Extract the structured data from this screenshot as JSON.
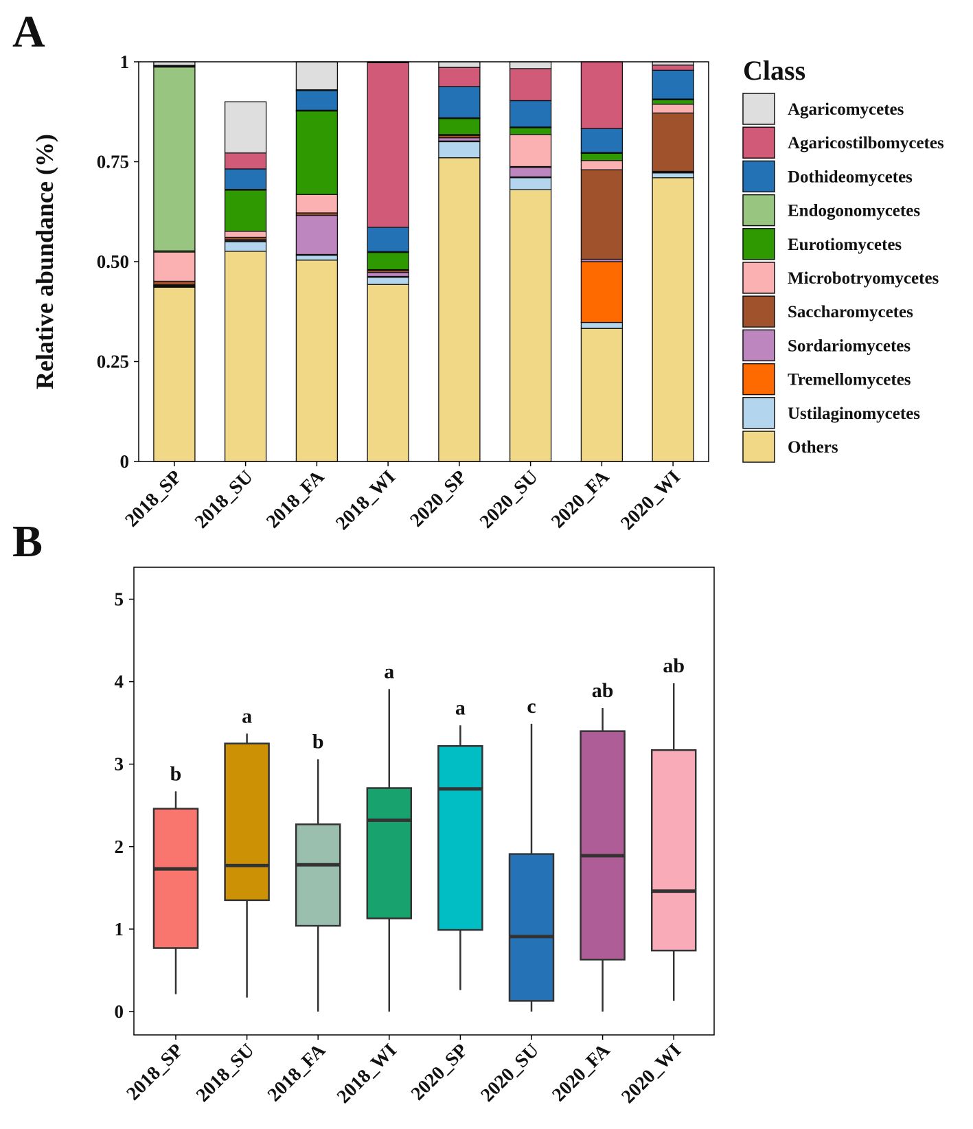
{
  "chart_data": [
    {
      "panel": "A",
      "type": "bar",
      "stacked": true,
      "ylabel": "Relative abundance (%)",
      "ylim": [
        0,
        1
      ],
      "yticks": [
        0,
        0.25,
        0.5,
        0.75,
        1
      ],
      "ytick_labels": [
        "0",
        "0.25",
        "0.50",
        "0.75",
        "1"
      ],
      "categories": [
        "2018_SP",
        "2018_SU",
        "2018_FA",
        "2018_WI",
        "2020_SP",
        "2020_SU",
        "2020_FA",
        "2020_WI"
      ],
      "legend_title": "Class",
      "legend_position": "right",
      "legend": [
        "Agaricomycetes",
        "Agaricostilbomycetes",
        "Dothideomycetes",
        "Endogonomycetes",
        "Eurotiomycetes",
        "Microbotryomycetes",
        "Saccharomycetes",
        "Sordariomycetes",
        "Tremellomycetes",
        "Ustilaginomycetes",
        "Others"
      ],
      "stack_order_bottom_up": [
        "Others",
        "Ustilaginomycetes",
        "Tremellomycetes",
        "Sordariomycetes",
        "Saccharomycetes",
        "Microbotryomycetes",
        "Eurotiomycetes",
        "Endogonomycetes",
        "Dothideomycetes",
        "Agaricostilbomycetes",
        "Agaricomycetes"
      ],
      "series": [
        {
          "name": "Others",
          "color": "#F0D886",
          "values": [
            0.436,
            0.526,
            0.504,
            0.443,
            0.76,
            0.68,
            0.333,
            0.71
          ]
        },
        {
          "name": "Ustilaginomycetes",
          "color": "#B3D5EE",
          "values": [
            0.002,
            0.024,
            0.012,
            0.018,
            0.04,
            0.03,
            0.015,
            0.012
          ]
        },
        {
          "name": "Tremellomycetes",
          "color": "#FF6A00",
          "values": [
            0.002,
            0.002,
            0.002,
            0.002,
            0.002,
            0.002,
            0.152,
            0.002
          ]
        },
        {
          "name": "Sordariomycetes",
          "color": "#BE86BE",
          "values": [
            0.002,
            0.003,
            0.098,
            0.01,
            0.008,
            0.024,
            0.006,
            0.002
          ]
        },
        {
          "name": "Saccharomycetes",
          "color": "#A0522D",
          "values": [
            0.009,
            0.006,
            0.006,
            0.005,
            0.006,
            0.002,
            0.224,
            0.146
          ]
        },
        {
          "name": "Microbotryomycetes",
          "color": "#FBB1B1",
          "values": [
            0.073,
            0.015,
            0.046,
            0.002,
            0.002,
            0.08,
            0.023,
            0.022
          ]
        },
        {
          "name": "Eurotiomycetes",
          "color": "#2E9900",
          "values": [
            0.003,
            0.103,
            0.209,
            0.043,
            0.04,
            0.017,
            0.018,
            0.011
          ]
        },
        {
          "name": "Endogonomycetes",
          "color": "#98C580",
          "values": [
            0.46,
            0.002,
            0.002,
            0.002,
            0.002,
            0.002,
            0.002,
            0.002
          ]
        },
        {
          "name": "Dothideomycetes",
          "color": "#2472B6",
          "values": [
            0.002,
            0.051,
            0.049,
            0.061,
            0.078,
            0.066,
            0.06,
            0.072
          ]
        },
        {
          "name": "Agaricostilbomycetes",
          "color": "#D15A78",
          "values": [
            0.002,
            0.04,
            0.002,
            0.412,
            0.048,
            0.08,
            0.167,
            0.013
          ]
        },
        {
          "name": "Agaricomycetes",
          "color": "#DEDEDE",
          "values": [
            0.009,
            0.128,
            0.07,
            0.002,
            0.014,
            0.017,
            0.0,
            0.008
          ]
        }
      ]
    },
    {
      "panel": "B",
      "type": "box",
      "ylim": [
        0,
        5.5
      ],
      "yticks": [
        0,
        1,
        2,
        3,
        4,
        5
      ],
      "ytick_labels": [
        "0",
        "1",
        "2",
        "3",
        "4",
        "5"
      ],
      "categories": [
        "2018_SP",
        "2018_SU",
        "2018_FA",
        "2018_WI",
        "2020_SP",
        "2020_SU",
        "2020_FA",
        "2020_WI"
      ],
      "boxes": [
        {
          "name": "2018_SP",
          "color": "#F8766D",
          "min": 0.21,
          "q1": 0.77,
          "median": 1.73,
          "q3": 2.46,
          "max": 2.67,
          "label": "b"
        },
        {
          "name": "2018_SU",
          "color": "#CC9104",
          "min": 0.17,
          "q1": 1.35,
          "median": 1.77,
          "q3": 3.25,
          "max": 3.37,
          "label": "a"
        },
        {
          "name": "2018_FA",
          "color": "#9BBFAF",
          "min": 0.0,
          "q1": 1.04,
          "median": 1.78,
          "q3": 2.27,
          "max": 3.06,
          "label": "b"
        },
        {
          "name": "2018_WI",
          "color": "#17A26E",
          "min": 0.0,
          "q1": 1.13,
          "median": 2.32,
          "q3": 2.71,
          "max": 3.91,
          "label": "a"
        },
        {
          "name": "2020_SP",
          "color": "#00BEC3",
          "min": 0.26,
          "q1": 0.99,
          "median": 2.7,
          "q3": 3.22,
          "max": 3.47,
          "label": "a"
        },
        {
          "name": "2020_SU",
          "color": "#2572B7",
          "min": 0.0,
          "q1": 0.13,
          "median": 0.91,
          "q3": 1.91,
          "max": 3.49,
          "label": "c"
        },
        {
          "name": "2020_FA",
          "color": "#AE5D97",
          "min": 0.0,
          "q1": 0.63,
          "median": 1.89,
          "q3": 3.4,
          "max": 3.68,
          "label": "ab"
        },
        {
          "name": "2020_WI",
          "color": "#F9ACB8",
          "min": 0.13,
          "q1": 0.74,
          "median": 1.46,
          "q3": 3.17,
          "max": 3.98,
          "label": "ab"
        }
      ]
    }
  ],
  "panels": {
    "a_label": "A",
    "b_label": "B"
  }
}
